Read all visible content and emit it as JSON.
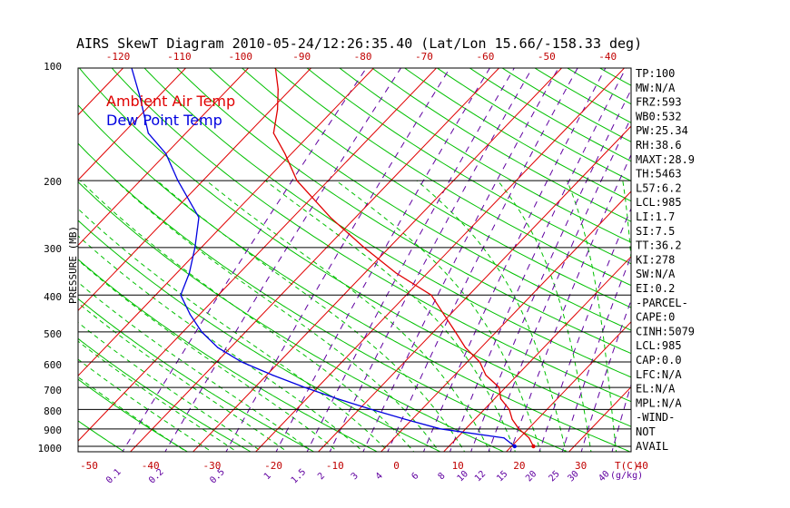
{
  "header": {
    "title": "AIRS SkewT Diagram 2010-05-24/12:26:35.40 (Lat/Lon 15.66/-158.33 deg)"
  },
  "axes": {
    "ylabel": "PRESSURE (MB)",
    "pressure_ticks": [
      "100",
      "200",
      "300",
      "400",
      "500",
      "600",
      "700",
      "800",
      "900",
      "1000"
    ],
    "top_temp_ticks": [
      "-120",
      "-110",
      "-100",
      "-90",
      "-80",
      "-70",
      "-60",
      "-50",
      "-40"
    ],
    "bottom_temp_ticks": [
      "-50",
      "-40",
      "-30",
      "-20",
      "-10",
      "0",
      "10",
      "20",
      "30",
      "40"
    ],
    "bottom_unit": "T(C)",
    "mixing_ratio_ticks": [
      "0.1",
      "0.2",
      "0.5",
      "1",
      "1.5",
      "2",
      "3",
      "4",
      "6",
      "8",
      "10",
      "12",
      "15",
      "20",
      "25",
      "30",
      "40"
    ],
    "mixing_ratio_unit": "(g/kg)"
  },
  "legend": {
    "items": [
      {
        "label": "Ambient Air Temp",
        "color": "#e00000"
      },
      {
        "label": "Dew Point Temp",
        "color": "#0000e0"
      }
    ]
  },
  "indices": [
    "TP:100",
    "MW:N/A",
    "FRZ:593",
    "WB0:532",
    "PW:25.34",
    "RH:38.6",
    "MAXT:28.9",
    "TH:5463",
    "L57:6.2",
    "LCL:985",
    "LI:1.7",
    "SI:7.5",
    "TT:36.2",
    "KI:278",
    "SW:N/A",
    "EI:0.2",
    "-PARCEL-",
    "CAPE:0",
    "CINH:5079",
    "LCL:985",
    "CAP:0.0",
    "LFC:N/A",
    "EL:N/A",
    "MPL:N/A",
    "-WIND-",
    "NOT",
    "AVAIL"
  ],
  "colors": {
    "isotherm": "#e00000",
    "dry_adiabat": "#00c000",
    "moist_adiabat": "#00c000",
    "mixing_ratio": "#6000a0",
    "temperature": "#e00000",
    "dewpoint": "#0000e0",
    "isobar": "#000000"
  },
  "chart_data": {
    "type": "line",
    "title": "AIRS SkewT Diagram 2010-05-24/12:26:35.40 (Lat/Lon 15.66/-158.33 deg)",
    "ylabel": "PRESSURE (MB)",
    "xlabel": "T(C)",
    "y_scale": "log",
    "ylim": [
      1050,
      100
    ],
    "grid": true,
    "legend_position": "top-left",
    "series": [
      {
        "name": "Ambient Air Temp",
        "points": [
          {
            "p": 1000,
            "t": 23.5
          },
          {
            "p": 950,
            "t": 21.5
          },
          {
            "p": 900,
            "t": 18.5
          },
          {
            "p": 850,
            "t": 16.0
          },
          {
            "p": 800,
            "t": 14.0
          },
          {
            "p": 750,
            "t": 11.0
          },
          {
            "p": 700,
            "t": 9.0
          },
          {
            "p": 650,
            "t": 5.0
          },
          {
            "p": 600,
            "t": 2.0
          },
          {
            "p": 550,
            "t": -2.5
          },
          {
            "p": 500,
            "t": -6.5
          },
          {
            "p": 450,
            "t": -11.0
          },
          {
            "p": 400,
            "t": -16.0
          },
          {
            "p": 350,
            "t": -25.0
          },
          {
            "p": 300,
            "t": -34.0
          },
          {
            "p": 250,
            "t": -44.0
          },
          {
            "p": 200,
            "t": -55.0
          },
          {
            "p": 170,
            "t": -61.0
          },
          {
            "p": 150,
            "t": -66.0
          },
          {
            "p": 130,
            "t": -69.0
          },
          {
            "p": 115,
            "t": -72.0
          },
          {
            "p": 100,
            "t": -76.0
          }
        ]
      },
      {
        "name": "Dew Point Temp",
        "points": [
          {
            "p": 1000,
            "t": 20.5
          },
          {
            "p": 950,
            "t": 17.5
          },
          {
            "p": 900,
            "t": 6.0
          },
          {
            "p": 850,
            "t": -1.0
          },
          {
            "p": 800,
            "t": -8.0
          },
          {
            "p": 750,
            "t": -15.0
          },
          {
            "p": 700,
            "t": -22.0
          },
          {
            "p": 650,
            "t": -29.0
          },
          {
            "p": 600,
            "t": -36.0
          },
          {
            "p": 550,
            "t": -42.0
          },
          {
            "p": 500,
            "t": -47.0
          },
          {
            "p": 450,
            "t": -51.5
          },
          {
            "p": 400,
            "t": -56.0
          },
          {
            "p": 350,
            "t": -58.0
          },
          {
            "p": 300,
            "t": -61.0
          },
          {
            "p": 250,
            "t": -65.0
          },
          {
            "p": 200,
            "t": -74.0
          },
          {
            "p": 170,
            "t": -80.0
          },
          {
            "p": 150,
            "t": -86.0
          },
          {
            "p": 120,
            "t": -93.0
          },
          {
            "p": 100,
            "t": -99.0
          }
        ]
      }
    ]
  }
}
